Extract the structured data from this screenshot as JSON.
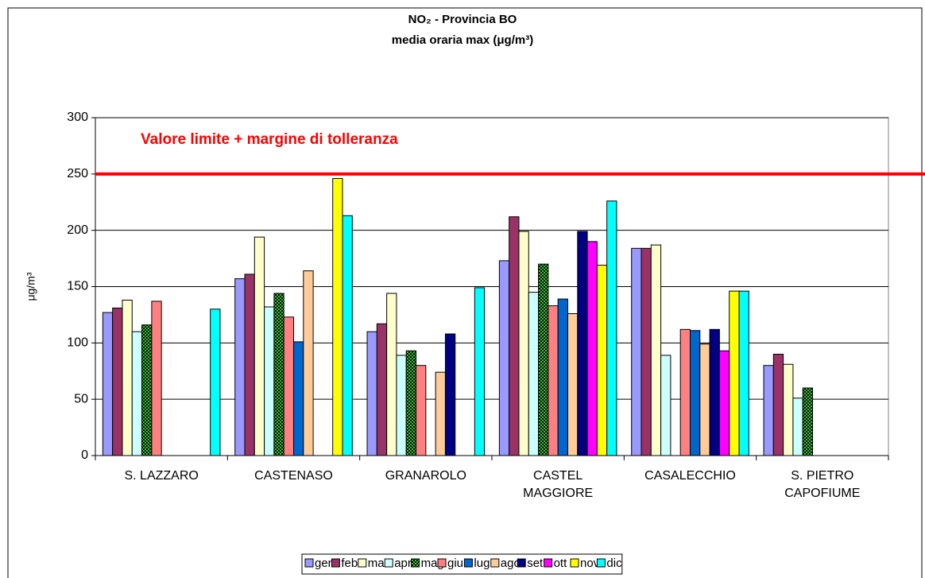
{
  "chart_data": {
    "type": "bar",
    "title": "NO₂ - Provincia BO",
    "subtitle": "media oraria max (μg/m³)",
    "y_label": "μg/m³",
    "categories": [
      "S. LAZZARO",
      "CASTENASO",
      "GRANAROLO",
      "CASTEL\nMAGGIORE",
      "CASALECCHIO",
      "S. PIETRO\nCAPOFIUME"
    ],
    "series": [
      {
        "name": "gen",
        "color": "#9999ff",
        "values": [
          127,
          157,
          110,
          173,
          184,
          80
        ]
      },
      {
        "name": "feb",
        "color": "#993366",
        "values": [
          131,
          161,
          117,
          212,
          184,
          90
        ]
      },
      {
        "name": "mar",
        "color": "#ffffcc",
        "values": [
          138,
          194,
          144,
          199,
          187,
          81
        ]
      },
      {
        "name": "apr",
        "color": "#ccffff",
        "values": [
          110,
          132,
          89,
          145,
          89,
          51
        ]
      },
      {
        "name": "mag",
        "color": "#33cc33",
        "values": [
          116,
          144,
          93,
          170,
          null,
          60
        ]
      },
      {
        "name": "giu",
        "color": "#ff8080",
        "values": [
          137,
          123,
          80,
          133,
          112,
          null
        ]
      },
      {
        "name": "lug",
        "color": "#0066cc",
        "values": [
          null,
          101,
          null,
          139,
          111,
          null
        ]
      },
      {
        "name": "ago",
        "color": "#ffcc99",
        "values": [
          null,
          164,
          74,
          126,
          99,
          null
        ]
      },
      {
        "name": "set",
        "color": "#000080",
        "values": [
          null,
          null,
          108,
          199,
          112,
          null
        ]
      },
      {
        "name": "ott",
        "color": "#ff00ff",
        "values": [
          null,
          null,
          null,
          190,
          93,
          null
        ]
      },
      {
        "name": "nov",
        "color": "#ffff00",
        "values": [
          null,
          246,
          null,
          169,
          146,
          null
        ]
      },
      {
        "name": "dic",
        "color": "#00ffff",
        "values": [
          130,
          213,
          149,
          226,
          146,
          null
        ]
      }
    ],
    "reference_line": {
      "value": 250,
      "label": "Valore limite + margine di tolleranza",
      "color": "#ff0000"
    },
    "ylim": [
      0,
      300
    ],
    "yticks": [
      0,
      50,
      100,
      150,
      200,
      250,
      300
    ],
    "grid": true,
    "legend": "bottom"
  }
}
